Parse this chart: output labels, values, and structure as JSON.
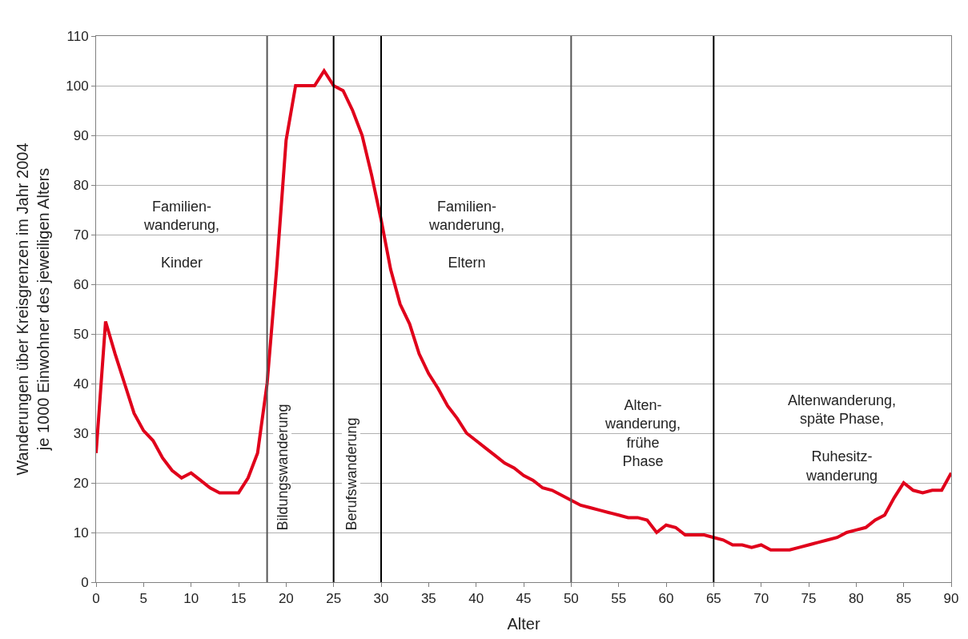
{
  "chart_data": {
    "type": "line",
    "xlabel": "Alter",
    "ylabel": "Wanderungen über Kreisgrenzen im Jahr 2004\nje 1000 Einwohner des jeweiligen Alters",
    "x": [
      0,
      1,
      2,
      3,
      4,
      5,
      6,
      7,
      8,
      9,
      10,
      11,
      12,
      13,
      14,
      15,
      16,
      17,
      18,
      19,
      20,
      21,
      22,
      23,
      24,
      25,
      26,
      27,
      28,
      29,
      30,
      31,
      32,
      33,
      34,
      35,
      36,
      37,
      38,
      39,
      40,
      41,
      42,
      43,
      44,
      45,
      46,
      47,
      48,
      49,
      50,
      51,
      52,
      53,
      54,
      55,
      56,
      57,
      58,
      59,
      60,
      61,
      62,
      63,
      64,
      65,
      66,
      67,
      68,
      69,
      70,
      71,
      72,
      73,
      74,
      75,
      76,
      77,
      78,
      79,
      80,
      81,
      82,
      83,
      84,
      85,
      86,
      87,
      88,
      89,
      90
    ],
    "series": [
      {
        "color": "#e0001b",
        "values": [
          26,
          52.5,
          46,
          40,
          34,
          30.5,
          28.5,
          25,
          22.5,
          21,
          22,
          20.5,
          19,
          18,
          18,
          18,
          21,
          26,
          40,
          63,
          89,
          100,
          100,
          100,
          103,
          100,
          99,
          95,
          90,
          82,
          73,
          63,
          56,
          52,
          46,
          42,
          39,
          35.5,
          33,
          30,
          28.5,
          27,
          25.5,
          24,
          23,
          21.5,
          20.5,
          19,
          18.5,
          17.5,
          16.5,
          15.5,
          15,
          14.5,
          14,
          13.5,
          13,
          13,
          12.5,
          10,
          11.5,
          11,
          9.5,
          9.5,
          9.5,
          9,
          8.5,
          7.5,
          7.5,
          7,
          7.5,
          6.5,
          6.5,
          6.5,
          7,
          7.5,
          8,
          8.5,
          9,
          10,
          10.5,
          11,
          12.5,
          13.5,
          17,
          20,
          18.5,
          18,
          18.5,
          18.5,
          22
        ]
      }
    ],
    "xlim": [
      0,
      90
    ],
    "xticks": [
      0,
      5,
      10,
      15,
      20,
      25,
      30,
      35,
      40,
      45,
      50,
      55,
      60,
      65,
      70,
      75,
      80,
      85,
      90
    ],
    "ylim": [
      0,
      110
    ],
    "yticks": [
      0,
      10,
      20,
      30,
      40,
      50,
      60,
      70,
      80,
      90,
      100,
      110
    ],
    "grid": "y",
    "marker": "none",
    "line_style": "solid",
    "ref_lines": [
      {
        "axis": "x",
        "value": 18,
        "label": "Bildungswanderung",
        "color": "#555555"
      },
      {
        "axis": "x",
        "value": 25,
        "label": "Berufswanderung",
        "color": "#000000"
      },
      {
        "axis": "x",
        "value": 30,
        "color": "#000000"
      },
      {
        "axis": "x",
        "value": 50,
        "color": "#555555"
      },
      {
        "axis": "x",
        "value": 65,
        "color": "#000000"
      }
    ],
    "annotations": [
      "Familien-\nwanderung,\n\nKinder",
      "Familien-\nwanderung,\n\nEltern",
      "Alten-\nwanderung,\nfrühe\nPhase",
      "Altenwanderung,\nspäte Phase,\n\nRuhesitz-\nwanderung"
    ]
  }
}
